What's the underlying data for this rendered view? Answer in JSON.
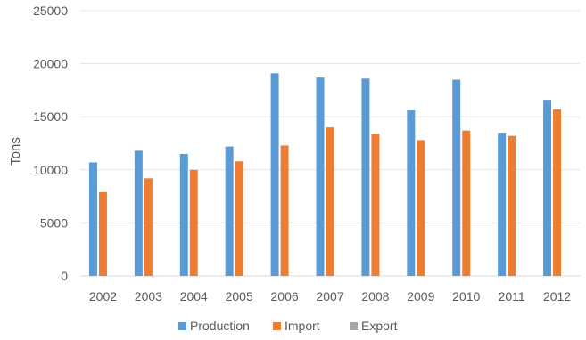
{
  "chart_data": {
    "type": "bar",
    "title": "",
    "xlabel": "",
    "ylabel": "Tons",
    "ylim": [
      0,
      25000
    ],
    "yticks": [
      "0",
      "5000",
      "10000",
      "15000",
      "20000",
      "25000"
    ],
    "grid": true,
    "legend_position": "bottom",
    "categories": [
      "2002",
      "2003",
      "2004",
      "2005",
      "2006",
      "2007",
      "2008",
      "2009",
      "2010",
      "2011",
      "2012"
    ],
    "series": [
      {
        "name": "Production",
        "color": "#5B9BD5",
        "values": [
          10700,
          11800,
          11500,
          12200,
          19100,
          18700,
          18600,
          15600,
          18500,
          13500,
          16600
        ]
      },
      {
        "name": "Import",
        "color": "#ED7D31",
        "values": [
          7900,
          9200,
          10000,
          10800,
          12300,
          14000,
          13400,
          12800,
          13700,
          13200,
          15700
        ]
      },
      {
        "name": "Export",
        "color": "#A5A5A5",
        "values": [
          0,
          0,
          0,
          0,
          0,
          0,
          0,
          0,
          0,
          0,
          0
        ]
      }
    ]
  }
}
